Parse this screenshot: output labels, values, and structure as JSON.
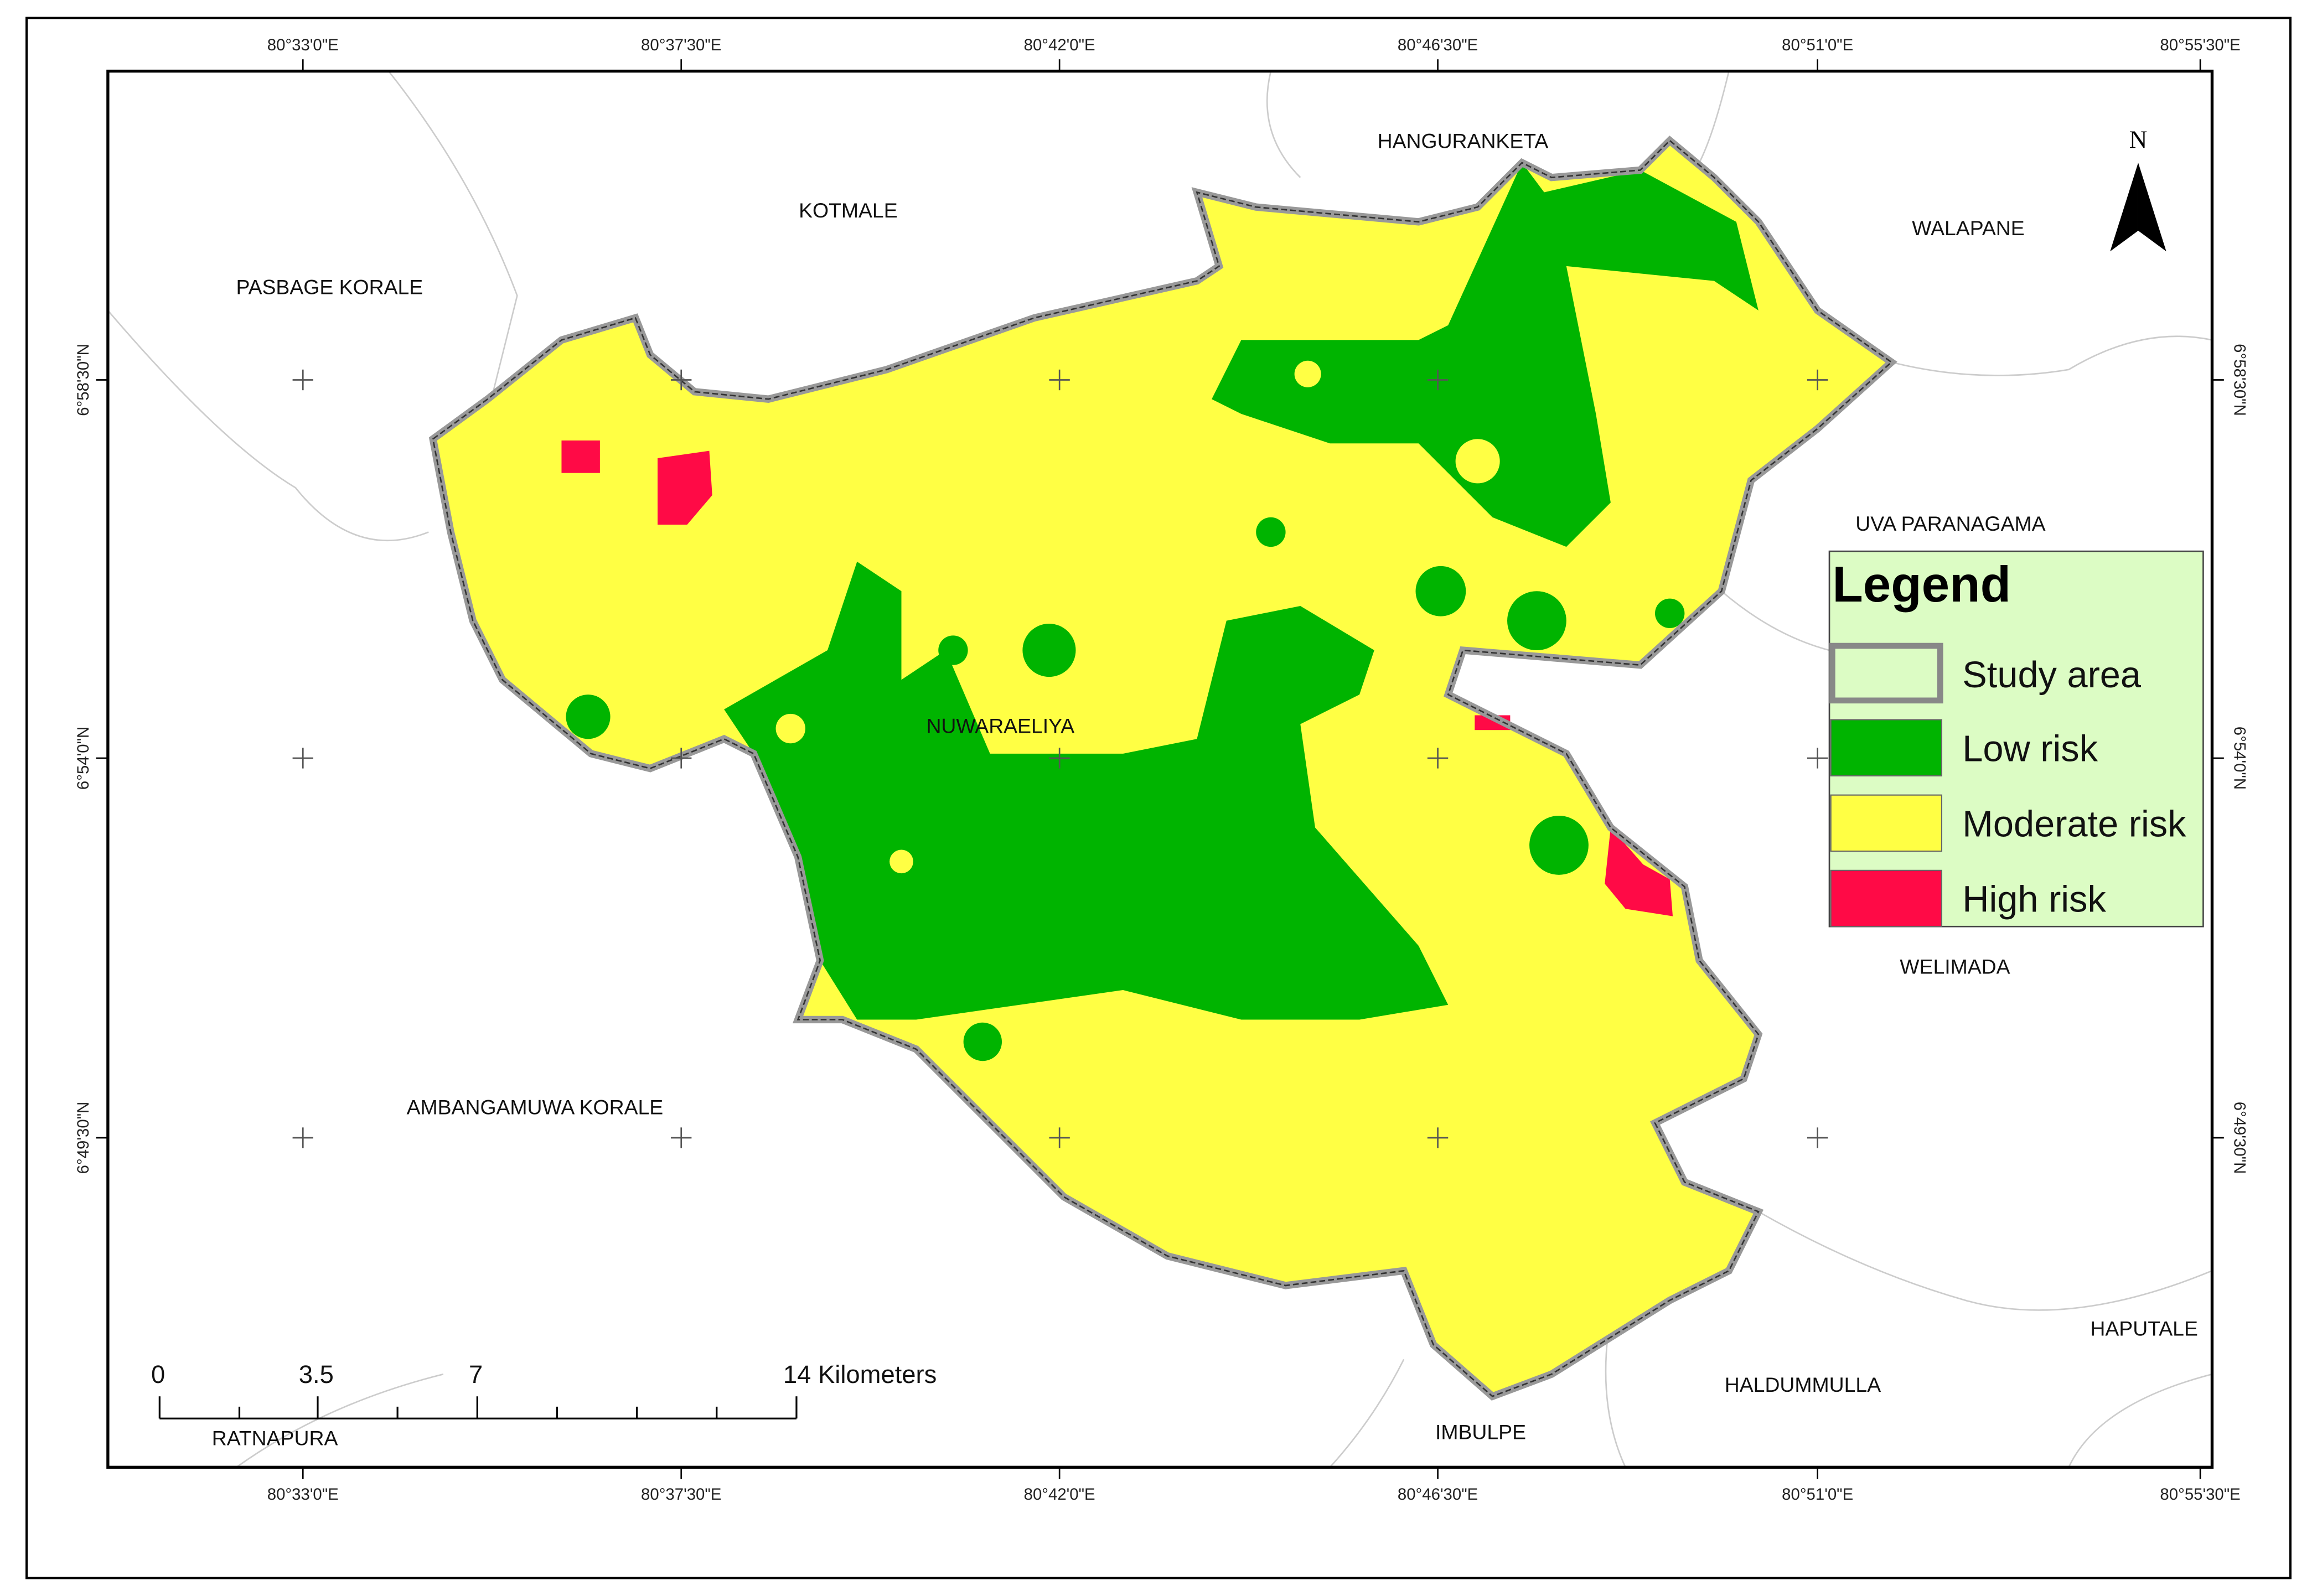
{
  "lon_labels": [
    "80°33'0\"E",
    "80°37'30\"E",
    "80°42'0\"E",
    "80°46'30\"E",
    "80°51'0\"E",
    "80°55'30\"E"
  ],
  "lat_labels": [
    "6°58'30\"N",
    "6°54'0\"N",
    "6°49'30\"N"
  ],
  "places": [
    "PASBAGE KORALE",
    "KOTMALE",
    "HANGURANKETA",
    "WALAPANE",
    "UVA PARANAGAMA",
    "NUWARAELIYA",
    "WELIMADA",
    "AMBANGAMUWA KORALE",
    "HAPUTALE",
    "HALDUMMULLA",
    "IMBULPE",
    "RATNAPURA"
  ],
  "legend": {
    "title": "Legend",
    "items": [
      {
        "label": "Study area",
        "color": "#dcfcc4"
      },
      {
        "label": "Low risk",
        "color": "#00b400"
      },
      {
        "label": "Moderate risk",
        "color": "#ffff44"
      },
      {
        "label": "High risk",
        "color": "#ff0a46"
      }
    ]
  },
  "scale_bar": {
    "labels": [
      "0",
      "3.5",
      "7",
      "14 Kilometers"
    ]
  },
  "north_arrow": "N"
}
